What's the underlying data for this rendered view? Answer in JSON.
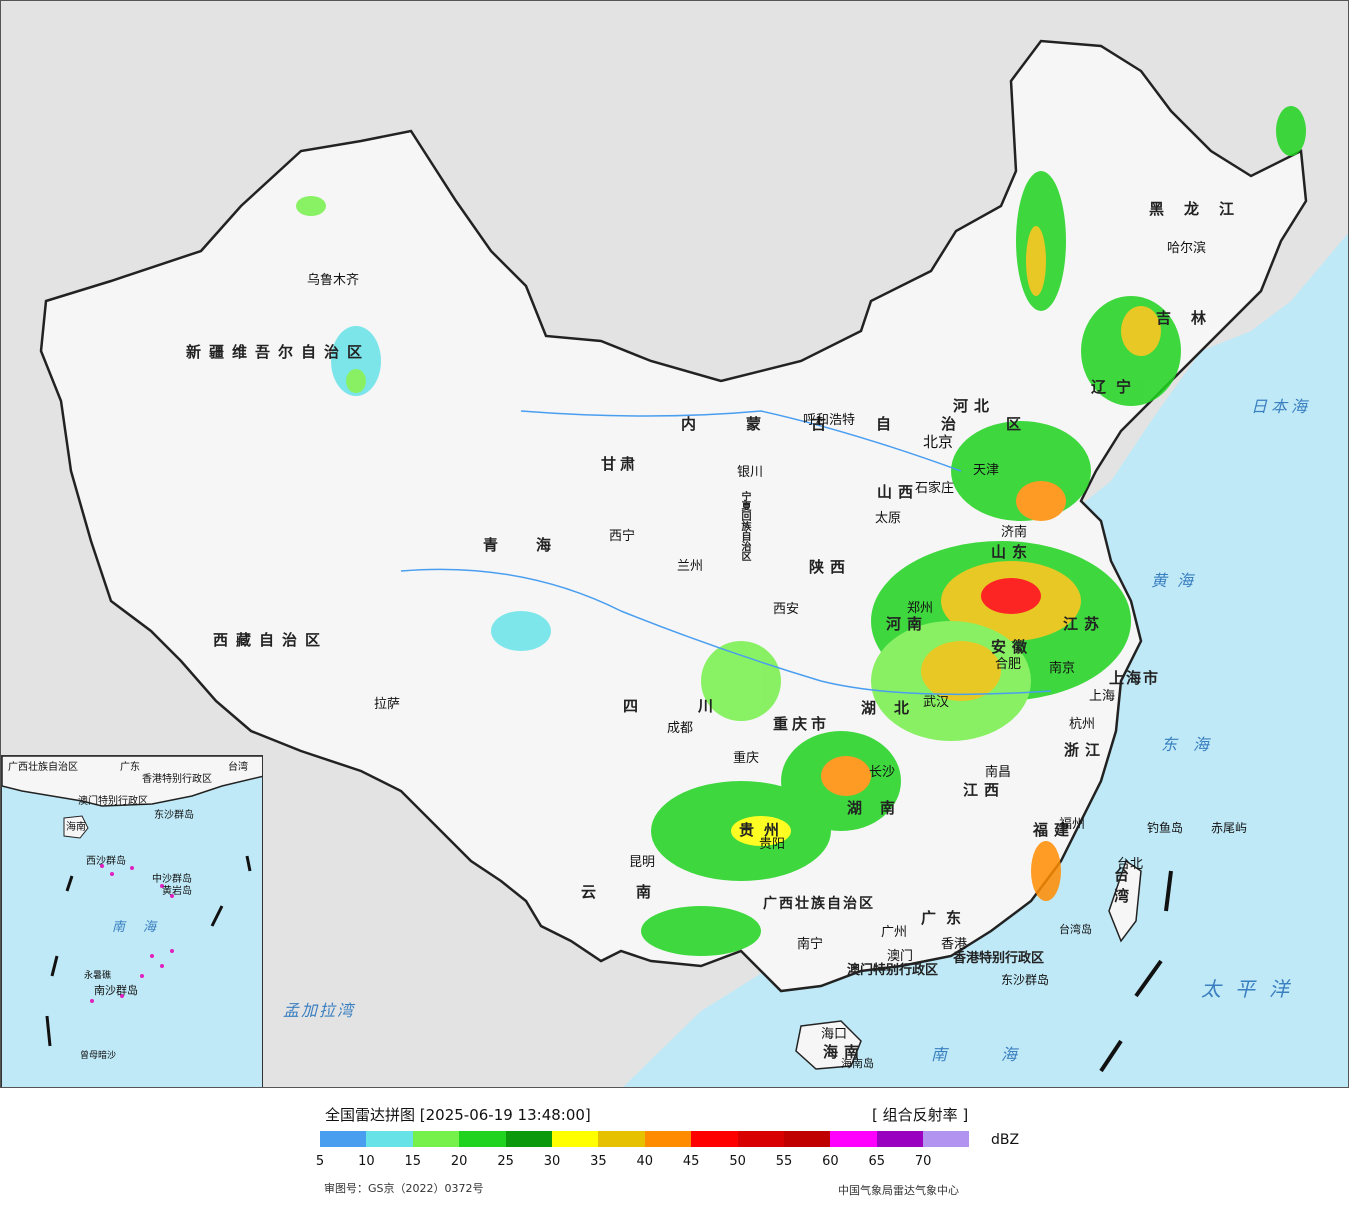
{
  "map": {
    "provinces": [
      {
        "name": "新疆维吾尔自治区"
      },
      {
        "name": "西藏自治区"
      },
      {
        "name": "青海"
      },
      {
        "name": "甘肃"
      },
      {
        "name": "四川"
      },
      {
        "name": "云南"
      },
      {
        "name": "内蒙古自治区"
      },
      {
        "name": "黑龙江"
      },
      {
        "name": "吉林"
      },
      {
        "name": "辽宁"
      },
      {
        "name": "河北"
      },
      {
        "name": "山西"
      },
      {
        "name": "陕西"
      },
      {
        "name": "河南"
      },
      {
        "name": "山东"
      },
      {
        "name": "江苏"
      },
      {
        "name": "安徽"
      },
      {
        "name": "湖北"
      },
      {
        "name": "湖南"
      },
      {
        "name": "江西"
      },
      {
        "name": "浙江"
      },
      {
        "name": "福建"
      },
      {
        "name": "广东"
      },
      {
        "name": "广西壮族自治区"
      },
      {
        "name": "贵州"
      },
      {
        "name": "重庆市"
      },
      {
        "name": "宁夏回族自治区"
      },
      {
        "name": "上海市"
      },
      {
        "name": "海南"
      },
      {
        "name": "台湾"
      },
      {
        "name": "香港特别行政区"
      },
      {
        "name": "澳门特别行政区"
      }
    ],
    "cities": [
      "乌鲁木齐",
      "拉萨",
      "西宁",
      "兰州",
      "银川",
      "呼和浩特",
      "北京",
      "天津",
      "石家庄",
      "太原",
      "济南",
      "郑州",
      "西安",
      "成都",
      "重庆",
      "武汉",
      "合肥",
      "南京",
      "上海",
      "杭州",
      "长沙",
      "南昌",
      "福州",
      "台北",
      "贵阳",
      "昆明",
      "南宁",
      "广州",
      "澳门",
      "香港",
      "海口",
      "哈尔滨"
    ],
    "seas": [
      "日本海",
      "黄海",
      "东海",
      "太平洋",
      "南海",
      "孟加拉湾"
    ],
    "islands": [
      "钓鱼岛",
      "赤尾屿",
      "台湾岛",
      "东沙群岛",
      "海南岛"
    ],
    "inset": {
      "labels": [
        "广西壮族自治区",
        "广东",
        "香港特别行政区",
        "澳门特别行政区",
        "台湾",
        "海南",
        "东沙群岛",
        "西沙群岛",
        "中沙群岛",
        "黄岩岛",
        "南海",
        "南沙群岛",
        "永暑礁",
        "曾母暗沙"
      ]
    }
  },
  "legend": {
    "title": "全国雷达拼图 [2025-06-19 13:48:00]",
    "product": "[ 组合反射率 ]",
    "unit": "dBZ",
    "colors": [
      "#4a9ef0",
      "#67e3e8",
      "#76f04a",
      "#1fd31f",
      "#0c9a0c",
      "#ffff00",
      "#e6c100",
      "#ff8c00",
      "#ff0000",
      "#d80000",
      "#c00000",
      "#ff00ff",
      "#9a00c0",
      "#b393f0"
    ],
    "ticks": [
      "5",
      "10",
      "15",
      "20",
      "25",
      "30",
      "35",
      "40",
      "45",
      "50",
      "55",
      "60",
      "65",
      "70"
    ],
    "approval": "审图号：GS京（2022）0372号",
    "source": "中国气象局雷达气象中心"
  }
}
